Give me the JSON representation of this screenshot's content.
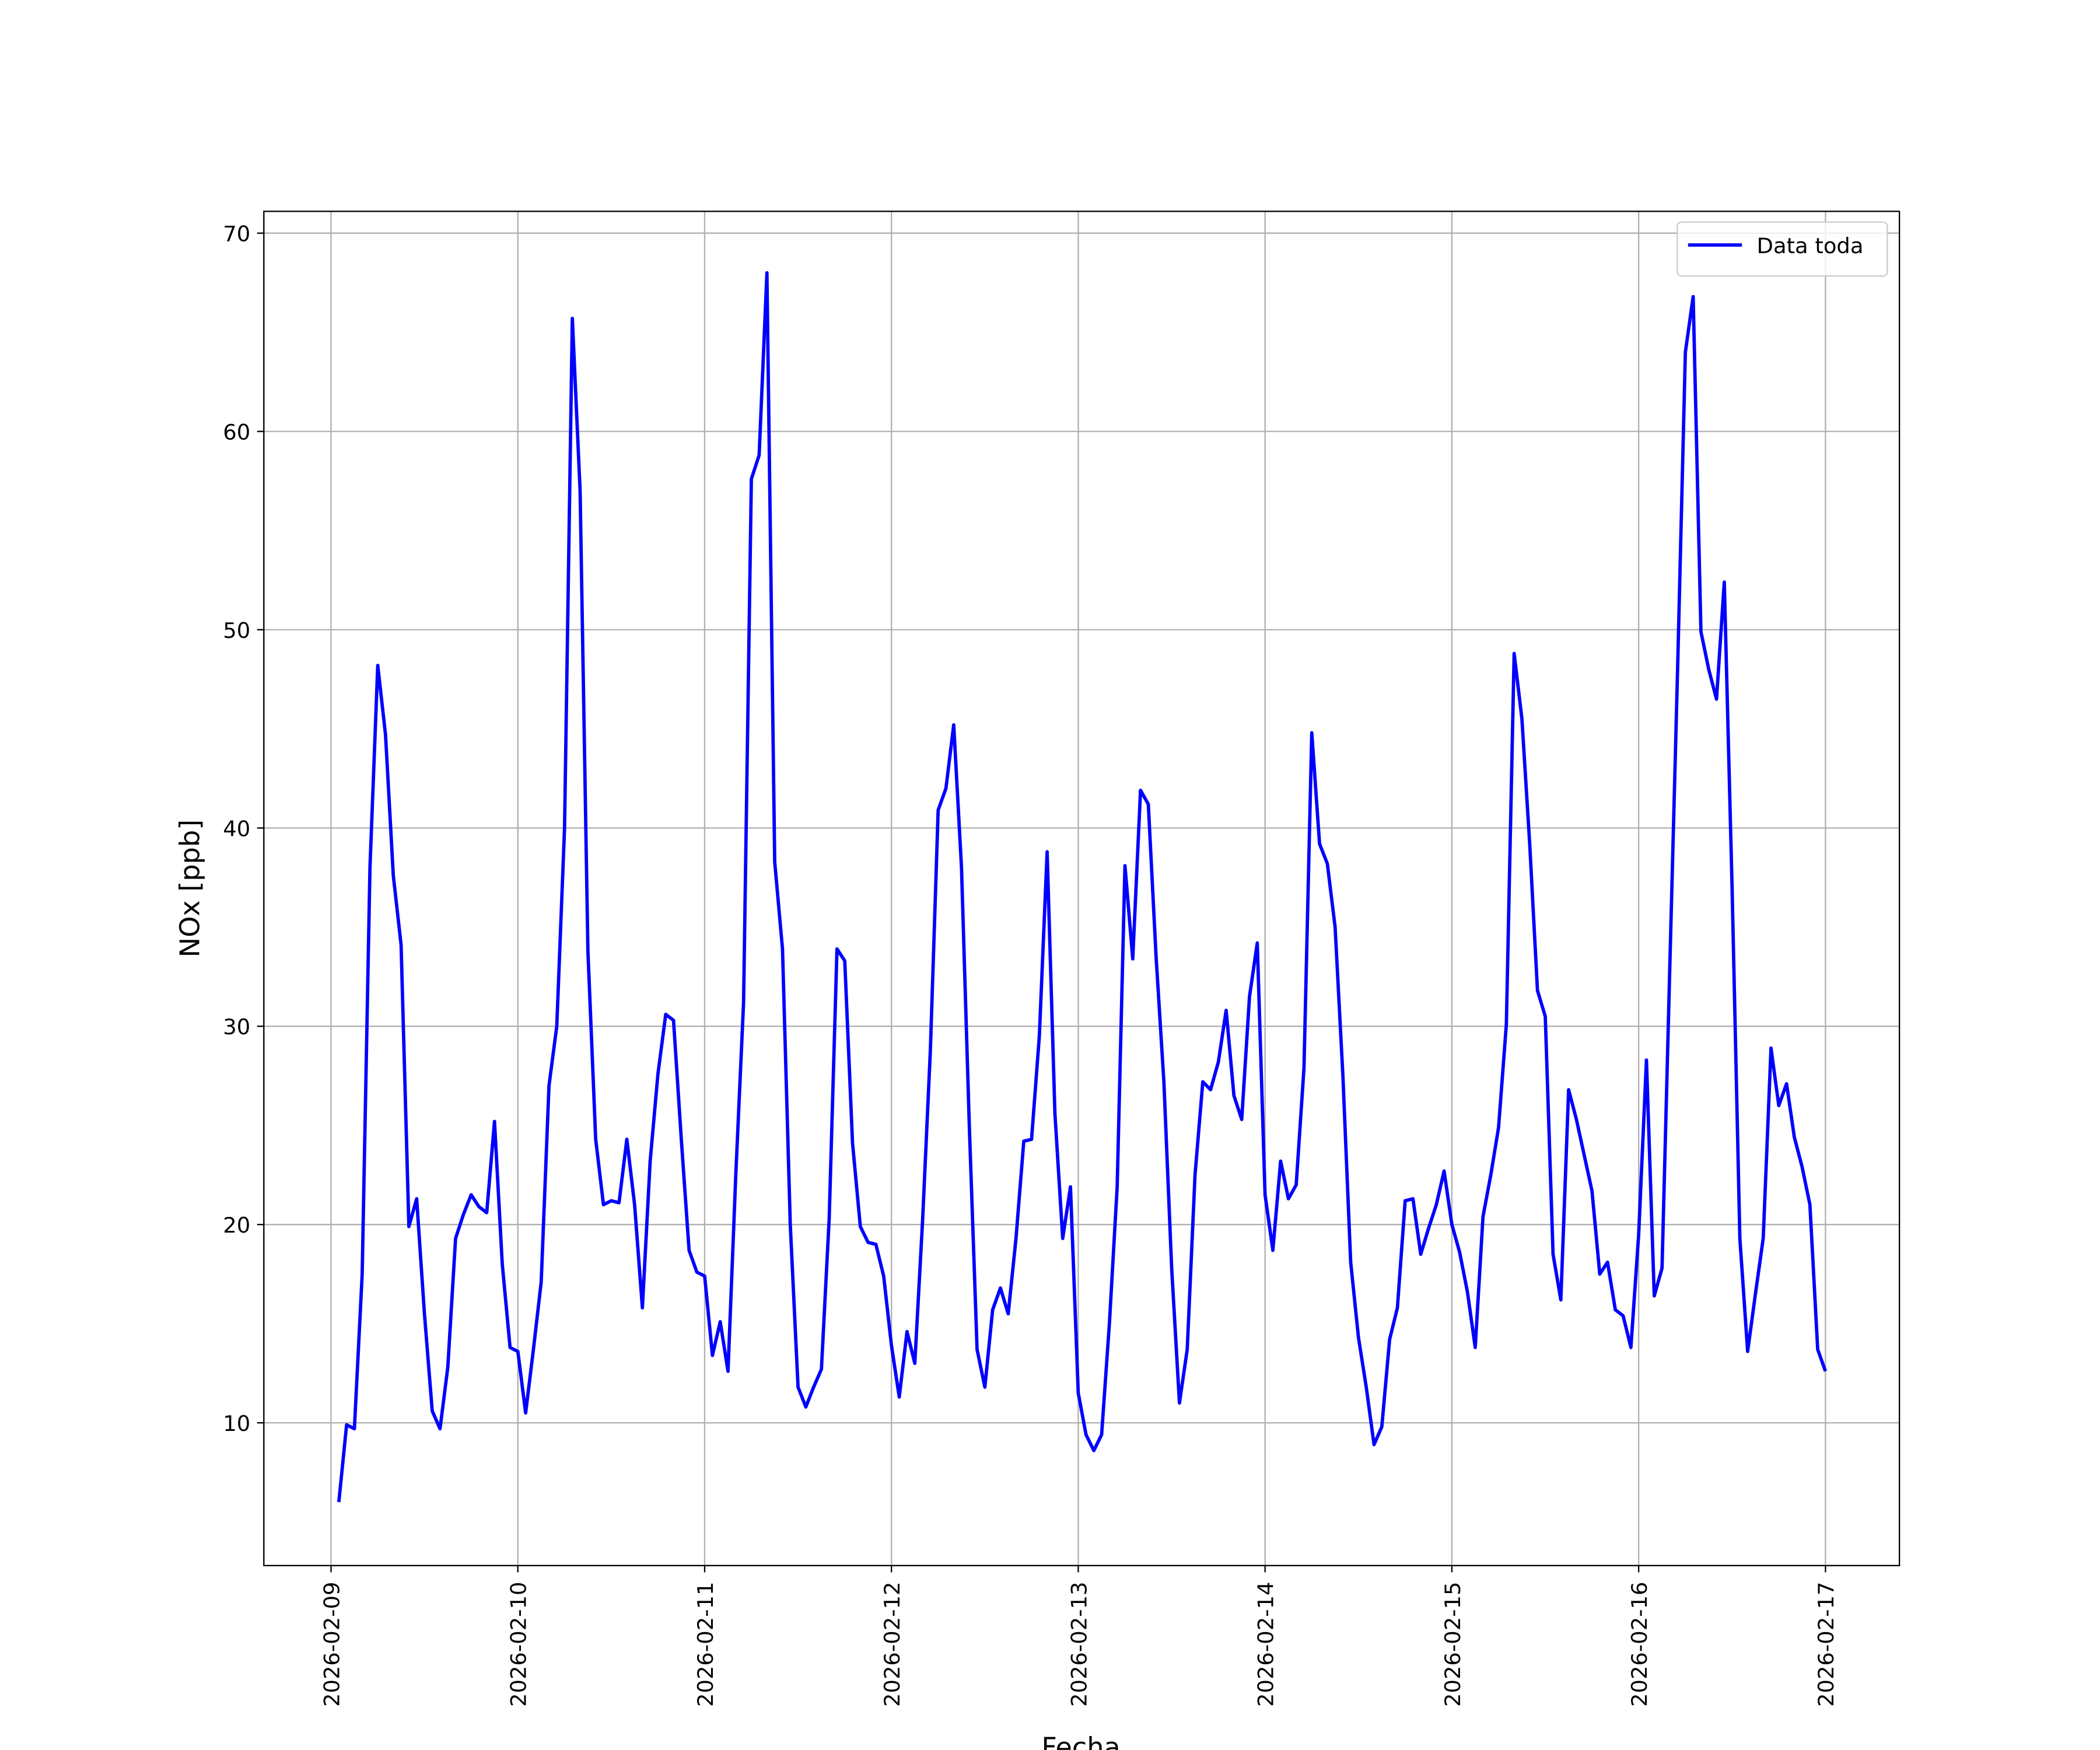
{
  "chart_data": {
    "type": "line",
    "x_label": "Fecha",
    "y_label": "NOx [ppb]",
    "x": [
      "2026-02-09T01:00",
      "2026-02-09T02:00",
      "2026-02-09T03:00",
      "2026-02-09T04:00",
      "2026-02-09T05:00",
      "2026-02-09T06:00",
      "2026-02-09T07:00",
      "2026-02-09T08:00",
      "2026-02-09T09:00",
      "2026-02-09T10:00",
      "2026-02-09T11:00",
      "2026-02-09T12:00",
      "2026-02-09T13:00",
      "2026-02-09T14:00",
      "2026-02-09T15:00",
      "2026-02-09T16:00",
      "2026-02-09T17:00",
      "2026-02-09T18:00",
      "2026-02-09T19:00",
      "2026-02-09T20:00",
      "2026-02-09T21:00",
      "2026-02-09T22:00",
      "2026-02-09T23:00",
      "2026-02-10T00:00",
      "2026-02-10T01:00",
      "2026-02-10T02:00",
      "2026-02-10T03:00",
      "2026-02-10T04:00",
      "2026-02-10T05:00",
      "2026-02-10T06:00",
      "2026-02-10T07:00",
      "2026-02-10T08:00",
      "2026-02-10T09:00",
      "2026-02-10T10:00",
      "2026-02-10T11:00",
      "2026-02-10T12:00",
      "2026-02-10T13:00",
      "2026-02-10T14:00",
      "2026-02-10T15:00",
      "2026-02-10T16:00",
      "2026-02-10T17:00",
      "2026-02-10T18:00",
      "2026-02-10T19:00",
      "2026-02-10T20:00",
      "2026-02-10T21:00",
      "2026-02-10T22:00",
      "2026-02-10T23:00",
      "2026-02-11T00:00",
      "2026-02-11T01:00",
      "2026-02-11T02:00",
      "2026-02-11T03:00",
      "2026-02-11T04:00",
      "2026-02-11T05:00",
      "2026-02-11T06:00",
      "2026-02-11T07:00",
      "2026-02-11T08:00",
      "2026-02-11T09:00",
      "2026-02-11T10:00",
      "2026-02-11T11:00",
      "2026-02-11T12:00",
      "2026-02-11T13:00",
      "2026-02-11T14:00",
      "2026-02-11T15:00",
      "2026-02-11T16:00",
      "2026-02-11T17:00",
      "2026-02-11T18:00",
      "2026-02-11T19:00",
      "2026-02-11T20:00",
      "2026-02-11T21:00",
      "2026-02-11T22:00",
      "2026-02-11T23:00",
      "2026-02-12T00:00",
      "2026-02-12T01:00",
      "2026-02-12T02:00",
      "2026-02-12T03:00",
      "2026-02-12T04:00",
      "2026-02-12T05:00",
      "2026-02-12T06:00",
      "2026-02-12T07:00",
      "2026-02-12T08:00",
      "2026-02-12T09:00",
      "2026-02-12T10:00",
      "2026-02-12T11:00",
      "2026-02-12T12:00",
      "2026-02-12T13:00",
      "2026-02-12T14:00",
      "2026-02-12T15:00",
      "2026-02-12T16:00",
      "2026-02-12T17:00",
      "2026-02-12T18:00",
      "2026-02-12T19:00",
      "2026-02-12T20:00",
      "2026-02-12T21:00",
      "2026-02-12T22:00",
      "2026-02-12T23:00",
      "2026-02-13T00:00",
      "2026-02-13T01:00",
      "2026-02-13T02:00",
      "2026-02-13T03:00",
      "2026-02-13T04:00",
      "2026-02-13T05:00",
      "2026-02-13T06:00",
      "2026-02-13T07:00",
      "2026-02-13T08:00",
      "2026-02-13T09:00",
      "2026-02-13T10:00",
      "2026-02-13T11:00",
      "2026-02-13T12:00",
      "2026-02-13T13:00",
      "2026-02-13T14:00",
      "2026-02-13T15:00",
      "2026-02-13T16:00",
      "2026-02-13T17:00",
      "2026-02-13T18:00",
      "2026-02-13T19:00",
      "2026-02-13T20:00",
      "2026-02-13T21:00",
      "2026-02-13T22:00",
      "2026-02-13T23:00",
      "2026-02-14T00:00",
      "2026-02-14T01:00",
      "2026-02-14T02:00",
      "2026-02-14T03:00",
      "2026-02-14T04:00",
      "2026-02-14T05:00",
      "2026-02-14T06:00",
      "2026-02-14T07:00",
      "2026-02-14T08:00",
      "2026-02-14T09:00",
      "2026-02-14T10:00",
      "2026-02-14T11:00",
      "2026-02-14T12:00",
      "2026-02-14T13:00",
      "2026-02-14T14:00",
      "2026-02-14T15:00",
      "2026-02-14T16:00",
      "2026-02-14T17:00",
      "2026-02-14T18:00",
      "2026-02-14T19:00",
      "2026-02-14T20:00",
      "2026-02-14T21:00",
      "2026-02-14T22:00",
      "2026-02-14T23:00",
      "2026-02-15T00:00",
      "2026-02-15T01:00",
      "2026-02-15T02:00",
      "2026-02-15T03:00",
      "2026-02-15T04:00",
      "2026-02-15T05:00",
      "2026-02-15T06:00",
      "2026-02-15T07:00",
      "2026-02-15T08:00",
      "2026-02-15T09:00",
      "2026-02-15T10:00",
      "2026-02-15T11:00",
      "2026-02-15T12:00",
      "2026-02-15T13:00",
      "2026-02-15T14:00",
      "2026-02-15T15:00",
      "2026-02-15T16:00",
      "2026-02-15T17:00",
      "2026-02-15T18:00",
      "2026-02-15T19:00",
      "2026-02-15T20:00",
      "2026-02-15T21:00",
      "2026-02-15T22:00",
      "2026-02-15T23:00",
      "2026-02-16T00:00",
      "2026-02-16T01:00",
      "2026-02-16T02:00",
      "2026-02-16T03:00",
      "2026-02-16T04:00",
      "2026-02-16T05:00",
      "2026-02-16T06:00",
      "2026-02-16T07:00",
      "2026-02-16T08:00",
      "2026-02-16T09:00",
      "2026-02-16T10:00",
      "2026-02-16T11:00",
      "2026-02-16T12:00",
      "2026-02-16T13:00",
      "2026-02-16T14:00",
      "2026-02-16T15:00",
      "2026-02-16T16:00",
      "2026-02-16T17:00",
      "2026-02-16T18:00",
      "2026-02-16T19:00",
      "2026-02-16T20:00",
      "2026-02-16T21:00",
      "2026-02-16T22:00",
      "2026-02-16T23:00",
      "2026-02-17T00:00"
    ],
    "series": [
      {
        "name": "Data toda",
        "color": "#0000ff",
        "values": [
          6.0,
          9.9,
          9.7,
          17.5,
          38.0,
          48.2,
          44.7,
          37.6,
          34.1,
          19.9,
          21.3,
          15.5,
          10.6,
          9.7,
          12.8,
          19.3,
          20.5,
          21.5,
          20.9,
          20.6,
          25.2,
          18.0,
          13.8,
          13.6,
          10.5,
          13.7,
          17.1,
          27.0,
          30.0,
          40.0,
          65.7,
          57.0,
          33.8,
          24.3,
          21.0,
          21.2,
          21.1,
          24.3,
          21.0,
          15.8,
          23.2,
          27.6,
          30.6,
          30.3,
          24.3,
          18.7,
          17.6,
          17.4,
          13.4,
          15.1,
          12.6,
          22.5,
          31.2,
          57.6,
          58.8,
          68.0,
          38.3,
          33.9,
          20.0,
          11.8,
          10.8,
          11.8,
          12.7,
          20.3,
          33.9,
          33.3,
          24.1,
          19.9,
          19.1,
          19.0,
          17.4,
          13.9,
          11.3,
          14.6,
          13.0,
          20.2,
          28.8,
          40.9,
          42.0,
          45.2,
          38.0,
          25.0,
          13.7,
          11.8,
          15.7,
          16.8,
          15.5,
          19.3,
          24.2,
          24.3,
          29.5,
          38.8,
          25.6,
          19.3,
          21.9,
          11.5,
          9.4,
          8.6,
          9.4,
          15.0,
          21.9,
          38.1,
          33.4,
          41.9,
          41.2,
          33.5,
          27.2,
          17.8,
          11.0,
          13.7,
          22.5,
          27.2,
          26.8,
          28.2,
          30.8,
          26.5,
          25.3,
          31.5,
          34.2,
          21.5,
          18.7,
          23.2,
          21.3,
          22.0,
          27.9,
          44.8,
          39.2,
          38.2,
          35.0,
          27.5,
          18.1,
          14.3,
          11.8,
          8.9,
          9.8,
          14.2,
          15.8,
          21.2,
          21.3,
          18.5,
          19.8,
          21.0,
          22.7,
          20.0,
          18.6,
          16.6,
          13.8,
          20.4,
          22.5,
          24.9,
          30.1,
          48.8,
          45.5,
          39.2,
          31.8,
          30.5,
          18.5,
          16.2,
          26.8,
          25.3,
          23.5,
          21.7,
          17.5,
          18.1,
          15.7,
          15.4,
          13.8,
          19.5,
          28.3,
          16.4,
          17.8,
          33.0,
          48.0,
          64.0,
          66.8,
          49.9,
          48.0,
          46.5,
          52.4,
          37.0,
          19.3,
          13.6,
          16.5,
          19.3,
          28.9,
          26.0,
          27.1,
          24.4,
          22.9,
          21.0,
          13.7,
          12.6
        ]
      }
    ],
    "xlim": [
      "2026-02-08T15:22",
      "2026-02-17T09:30"
    ],
    "xticks": [
      "2026-02-09",
      "2026-02-10",
      "2026-02-11",
      "2026-02-12",
      "2026-02-13",
      "2026-02-14",
      "2026-02-15",
      "2026-02-16",
      "2026-02-17"
    ],
    "ylim": [
      2.8,
      71.1
    ],
    "yticks": [
      10,
      20,
      30,
      40,
      50,
      60,
      70
    ],
    "grid": true,
    "legend": "upper right"
  }
}
